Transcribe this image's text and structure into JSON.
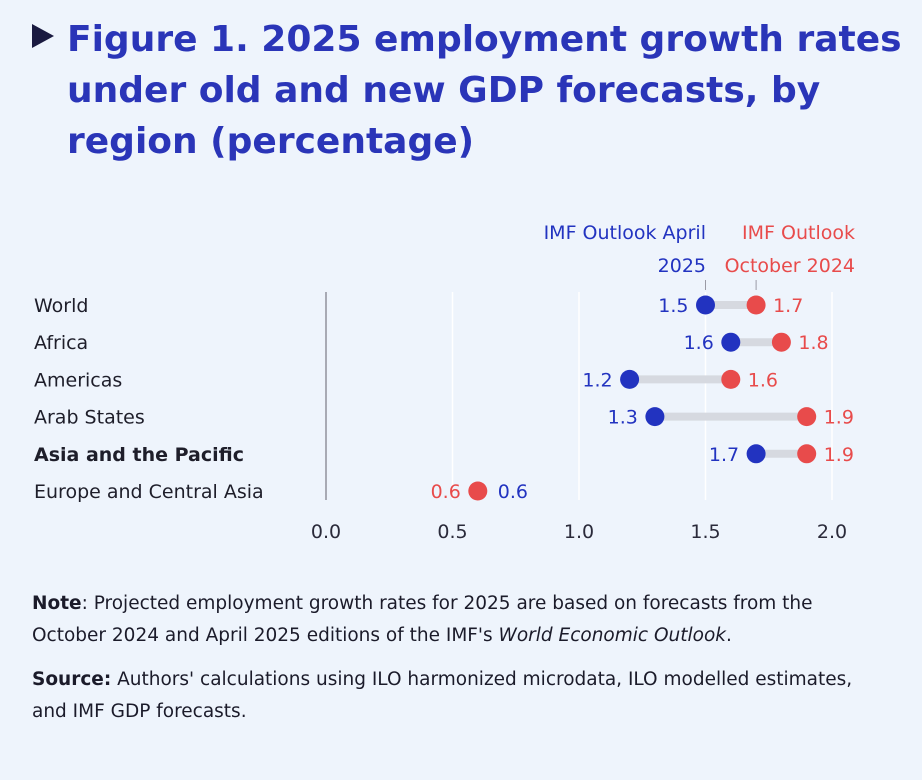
{
  "figure": {
    "title": "Figure 1. 2025 employment growth rates under old and new GDP forecasts, by region (percentage)"
  },
  "colors": {
    "blue": "#2233c0",
    "red": "#e84b4b",
    "connector": "#d6d9e0",
    "title": "#2a35b8",
    "background": "#eef4fc"
  },
  "chart_data": {
    "type": "dumbbell",
    "categories": [
      "World",
      "Africa",
      "Americas",
      "Arab States",
      "Asia and the Pacific",
      "Europe and Central Asia"
    ],
    "emphasized_category": "Asia and the Pacific",
    "series": [
      {
        "name": "IMF Outlook April 2025",
        "color": "#2233c0",
        "values": [
          1.5,
          1.6,
          1.2,
          1.3,
          1.7,
          0.6
        ]
      },
      {
        "name": "IMF Outlook October 2024",
        "color": "#e84b4b",
        "values": [
          1.7,
          1.8,
          1.6,
          1.9,
          1.9,
          0.6
        ]
      }
    ],
    "legend_lines": [
      [
        "IMF Outlook April",
        "2025"
      ],
      [
        "IMF Outlook",
        "October 2024"
      ]
    ],
    "xlim": [
      0.0,
      2.0
    ],
    "xticks": [
      "0.0",
      "0.5",
      "1.0",
      "1.5",
      "2.0"
    ],
    "grid": "vertical",
    "legend": "top"
  },
  "notes": {
    "note_label": "Note",
    "note_text_1": ": Projected employment growth rates for 2025 are based on forecasts from the October 2024 and April 2025 editions of the IMF's ",
    "note_italic": "World Economic Outlook",
    "note_text_2": ".",
    "source_label": "Source:",
    "source_text": " Authors' calculations using ILO harmonized microdata, ILO modelled estimates, and IMF GDP forecasts."
  }
}
